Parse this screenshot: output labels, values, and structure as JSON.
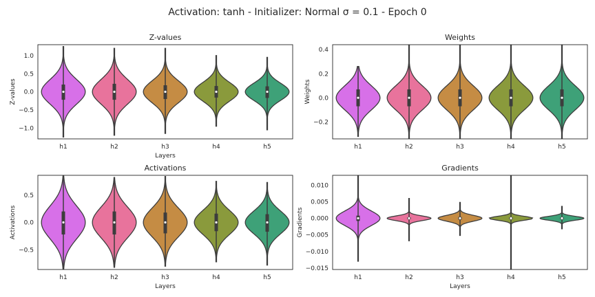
{
  "suptitle": "Activation: tanh - Initializer: Normal σ = 0.1 - Epoch 0",
  "colors": {
    "h1": "#d770e8",
    "h2": "#e8739c",
    "h3": "#c58c44",
    "h4": "#8a9a3c",
    "h5": "#3ea178",
    "outline": "#3d3d3d",
    "box": "#3d3d3d",
    "median": "#ffffff"
  },
  "chart_data": [
    {
      "type": "violin",
      "title": "Z-values",
      "xlabel": "Layers",
      "ylabel": "Z-values",
      "categories": [
        "h1",
        "h2",
        "h3",
        "h4",
        "h5"
      ],
      "ylim": [
        -1.3,
        1.3
      ],
      "yticks": [
        -1.0,
        -0.5,
        0.0,
        0.5,
        1.0
      ],
      "ytick_labels": [
        "−1.0",
        "−0.5",
        "0.0",
        "0.5",
        "1.0"
      ],
      "grid": false,
      "violins": [
        {
          "name": "h1",
          "sd": 0.34,
          "min": -1.25,
          "max": 1.25,
          "q1": -0.22,
          "median": 0.0,
          "q3": 0.2
        },
        {
          "name": "h2",
          "sd": 0.34,
          "min": -1.2,
          "max": 1.2,
          "q1": -0.22,
          "median": 0.0,
          "q3": 0.22
        },
        {
          "name": "h3",
          "sd": 0.3,
          "min": -1.15,
          "max": 1.2,
          "q1": -0.2,
          "median": 0.0,
          "q3": 0.18
        },
        {
          "name": "h4",
          "sd": 0.26,
          "min": -0.95,
          "max": 1.0,
          "q1": -0.16,
          "median": 0.0,
          "q3": 0.16
        },
        {
          "name": "h5",
          "sd": 0.24,
          "min": -1.05,
          "max": 0.95,
          "q1": -0.17,
          "median": 0.0,
          "q3": 0.15
        }
      ]
    },
    {
      "type": "violin",
      "title": "Weights",
      "xlabel": "",
      "ylabel": "Weights",
      "categories": [
        "h1",
        "h2",
        "h3",
        "h4",
        "h5"
      ],
      "ylim": [
        -0.34,
        0.44
      ],
      "yticks": [
        -0.2,
        0.0,
        0.2,
        0.4
      ],
      "ytick_labels": [
        "−0.2",
        "0.0",
        "0.2",
        "0.4"
      ],
      "grid": false,
      "violins": [
        {
          "name": "h1",
          "sd": 0.1,
          "min": -0.32,
          "max": 0.26,
          "q1": -0.07,
          "median": 0.0,
          "q3": 0.07
        },
        {
          "name": "h2",
          "sd": 0.1,
          "min": -0.34,
          "max": 0.44,
          "q1": -0.07,
          "median": 0.0,
          "q3": 0.07
        },
        {
          "name": "h3",
          "sd": 0.1,
          "min": -0.34,
          "max": 0.44,
          "q1": -0.07,
          "median": 0.0,
          "q3": 0.07
        },
        {
          "name": "h4",
          "sd": 0.1,
          "min": -0.34,
          "max": 0.44,
          "q1": -0.07,
          "median": 0.0,
          "q3": 0.07
        },
        {
          "name": "h5",
          "sd": 0.1,
          "min": -0.34,
          "max": 0.44,
          "q1": -0.07,
          "median": 0.0,
          "q3": 0.07
        }
      ]
    },
    {
      "type": "violin",
      "title": "Activations",
      "xlabel": "Layers",
      "ylabel": "Activations",
      "categories": [
        "h1",
        "h2",
        "h3",
        "h4",
        "h5"
      ],
      "ylim": [
        -0.86,
        0.86
      ],
      "yticks": [
        -0.5,
        0.0,
        0.5
      ],
      "ytick_labels": [
        "−0.5",
        "0.0",
        "0.5"
      ],
      "grid": false,
      "violins": [
        {
          "name": "h1",
          "sd": 0.3,
          "min": -0.85,
          "max": 0.85,
          "q1": -0.22,
          "median": 0.0,
          "q3": 0.2
        },
        {
          "name": "h2",
          "sd": 0.28,
          "min": -0.82,
          "max": 0.82,
          "q1": -0.22,
          "median": 0.0,
          "q3": 0.2
        },
        {
          "name": "h3",
          "sd": 0.26,
          "min": -0.8,
          "max": 0.84,
          "q1": -0.2,
          "median": 0.0,
          "q3": 0.18
        },
        {
          "name": "h4",
          "sd": 0.22,
          "min": -0.72,
          "max": 0.75,
          "q1": -0.16,
          "median": 0.0,
          "q3": 0.16
        },
        {
          "name": "h5",
          "sd": 0.21,
          "min": -0.78,
          "max": 0.73,
          "q1": -0.17,
          "median": 0.0,
          "q3": 0.15
        }
      ]
    },
    {
      "type": "violin",
      "title": "Gradients",
      "xlabel": "Layers",
      "ylabel": "Gradients",
      "categories": [
        "h1",
        "h2",
        "h3",
        "h4",
        "h5"
      ],
      "ylim": [
        -0.0155,
        0.013
      ],
      "yticks": [
        -0.015,
        -0.01,
        -0.005,
        0.0,
        0.005,
        0.01
      ],
      "ytick_labels": [
        "−0.015",
        "−0.010",
        "−0.005",
        "0.000",
        "0.005",
        "0.010"
      ],
      "grid": false,
      "violins": [
        {
          "name": "h1",
          "sd": 0.0022,
          "min": -0.013,
          "max": 0.0135,
          "q1": -0.0008,
          "median": 0.0,
          "q3": 0.0008
        },
        {
          "name": "h2",
          "sd": 0.0007,
          "min": -0.0068,
          "max": 0.006,
          "q1": -0.0003,
          "median": 0.0,
          "q3": 0.0003
        },
        {
          "name": "h3",
          "sd": 0.0009,
          "min": -0.0052,
          "max": 0.0048,
          "q1": -0.0004,
          "median": 0.0,
          "q3": 0.0004
        },
        {
          "name": "h4",
          "sd": 0.0006,
          "min": -0.016,
          "max": 0.013,
          "q1": -0.0003,
          "median": 0.0,
          "q3": 0.0003
        },
        {
          "name": "h5",
          "sd": 0.0006,
          "min": -0.0032,
          "max": 0.0036,
          "q1": -0.0003,
          "median": 0.0,
          "q3": 0.0003
        }
      ]
    }
  ]
}
